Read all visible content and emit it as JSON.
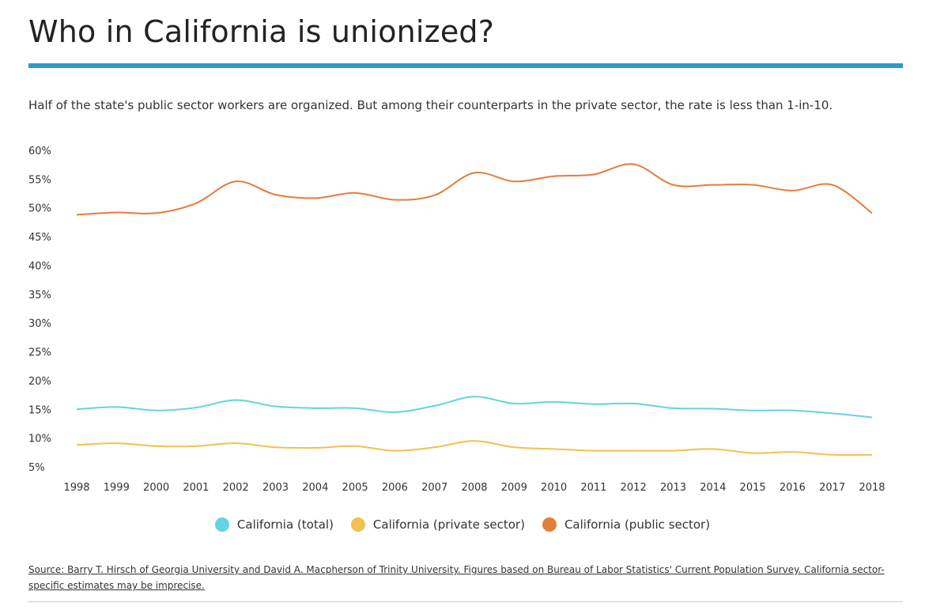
{
  "title": "Who in California is unionized?",
  "subtitle": "Half of the state's public sector workers are organized.  But among their counterparts in the private sector, the rate is less than 1-in-10.",
  "source": "Source: Barry T. Hirsch of Georgia University and David A. Macpherson of Trinity University. Figures based on Bureau of Labor Statistics' Current Population Survey. California sector-specific estimates may be imprecise.",
  "accent_color": "#2E9ACB",
  "chart_data": {
    "type": "line",
    "title": "",
    "xlabel": "",
    "ylabel": "",
    "x": [
      "1998",
      "1999",
      "2000",
      "2001",
      "2002",
      "2003",
      "2004",
      "2005",
      "2006",
      "2007",
      "2008",
      "2009",
      "2010",
      "2011",
      "2012",
      "2013",
      "2014",
      "2015",
      "2016",
      "2017",
      "2018"
    ],
    "y_ticks": [
      "5%",
      "10%",
      "15%",
      "20%",
      "25%",
      "30%",
      "35%",
      "40%",
      "45%",
      "50%",
      "55%",
      "60%"
    ],
    "ylim": [
      5,
      60
    ],
    "grid": false,
    "legend_position": "bottom",
    "series": [
      {
        "name": "California (total)",
        "color": "#63D4E0",
        "values": [
          15.0,
          15.4,
          14.8,
          15.3,
          16.6,
          15.5,
          15.2,
          15.2,
          14.5,
          15.6,
          17.2,
          16.0,
          16.3,
          15.9,
          16.0,
          15.2,
          15.1,
          14.8,
          14.8,
          14.3,
          13.6
        ]
      },
      {
        "name": "California (private sector)",
        "color": "#F0C24F",
        "values": [
          8.8,
          9.1,
          8.6,
          8.6,
          9.1,
          8.4,
          8.3,
          8.6,
          7.8,
          8.4,
          9.5,
          8.4,
          8.1,
          7.8,
          7.8,
          7.8,
          8.1,
          7.4,
          7.6,
          7.1,
          7.1
        ]
      },
      {
        "name": "California (public sector)",
        "color": "#E37D3A",
        "values": [
          48.8,
          49.2,
          49.1,
          50.8,
          54.6,
          52.3,
          51.7,
          52.6,
          51.4,
          52.2,
          56.1,
          54.6,
          55.5,
          55.8,
          57.6,
          54.0,
          54.0,
          54.0,
          53.0,
          54.0,
          49.1
        ]
      }
    ]
  }
}
